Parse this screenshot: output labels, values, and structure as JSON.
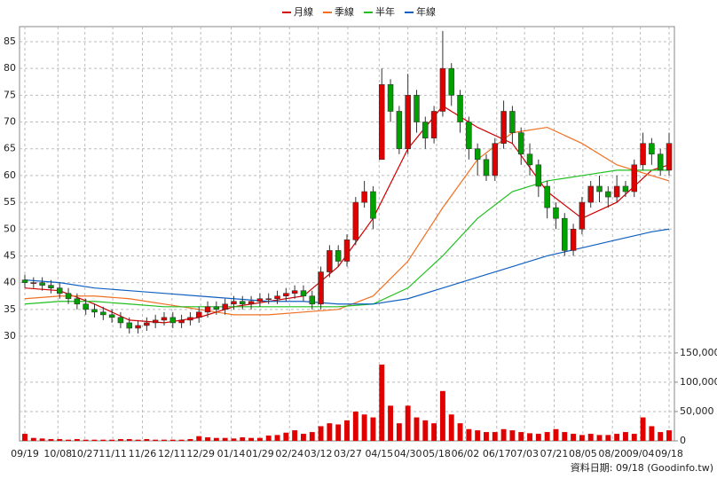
{
  "chart_data": {
    "type": "candlestick",
    "up_color": "#e00000",
    "down_color": "#00a000",
    "volume_color": "#e00000",
    "xticks": [
      {
        "value": 0,
        "label": "09/19"
      },
      {
        "value": 3.8,
        "label": "10/08"
      },
      {
        "value": 6.9,
        "label": "10/27"
      },
      {
        "value": 10.1,
        "label": "11/11"
      },
      {
        "value": 13.5,
        "label": "11/26"
      },
      {
        "value": 16.9,
        "label": "12/11"
      },
      {
        "value": 20.2,
        "label": "12/29"
      },
      {
        "value": 23.7,
        "label": "01/14"
      },
      {
        "value": 27.0,
        "label": "01/29"
      },
      {
        "value": 30.4,
        "label": "02/24"
      },
      {
        "value": 33.7,
        "label": "03/12"
      },
      {
        "value": 37.1,
        "label": "03/27"
      },
      {
        "value": 40.7,
        "label": "04/15"
      },
      {
        "value": 44.0,
        "label": "04/30"
      },
      {
        "value": 47.3,
        "label": "05/18"
      },
      {
        "value": 50.6,
        "label": "06/02"
      },
      {
        "value": 54.2,
        "label": "06/17"
      },
      {
        "value": 57.4,
        "label": "07/03"
      },
      {
        "value": 60.8,
        "label": "07/21"
      },
      {
        "value": 64.1,
        "label": "08/05"
      },
      {
        "value": 67.5,
        "label": "08/20"
      },
      {
        "value": 70.7,
        "label": "09/04"
      },
      {
        "value": 74,
        "label": "09/18"
      }
    ],
    "xlim": [
      0,
      74
    ],
    "ylim": [
      30,
      85
    ],
    "yticks": [
      30,
      35,
      40,
      45,
      50,
      55,
      60,
      65,
      70,
      75,
      80,
      85
    ],
    "y2lim": [
      0,
      177000
    ],
    "y2ticks": [
      0,
      {
        "value": 50000,
        "label": "50,000"
      },
      {
        "value": 100000,
        "label": "100,000"
      },
      {
        "value": 150000,
        "label": "150,000"
      }
    ],
    "grid": true,
    "open": [
      40.5,
      40,
      40,
      39.5,
      39,
      38,
      37,
      36,
      35,
      34.5,
      34,
      33.5,
      32.5,
      31.5,
      32,
      32.5,
      33,
      33.5,
      32.5,
      33,
      33.5,
      34.5,
      35.5,
      35,
      36,
      36.5,
      36,
      36.5,
      37,
      37,
      37.5,
      38,
      38.5,
      37.5,
      36,
      42,
      46,
      44,
      48,
      55,
      57,
      63,
      77,
      72,
      65,
      75,
      70,
      67,
      72,
      80,
      75,
      70,
      65,
      63,
      60,
      66,
      72,
      68,
      64,
      62,
      58,
      54,
      52,
      46,
      50,
      55,
      58,
      57,
      56,
      58,
      57,
      62,
      66,
      64,
      61
    ],
    "high": [
      41.5,
      41,
      41,
      40.5,
      40,
      39,
      38,
      37,
      36,
      35.5,
      35,
      34.5,
      33.5,
      33,
      33.5,
      34,
      34.5,
      34.5,
      34,
      34.5,
      35.5,
      36.5,
      36.5,
      37,
      37.5,
      37.5,
      37.5,
      38,
      38,
      38.5,
      39,
      39.5,
      39.5,
      38.5,
      43,
      47,
      47,
      49,
      56,
      59,
      58,
      80,
      78,
      73,
      79,
      76,
      71,
      73,
      87,
      81,
      76,
      71,
      66,
      64,
      67,
      74,
      73,
      69,
      66,
      63,
      59,
      55,
      53,
      51,
      56,
      59,
      60,
      58,
      60,
      59,
      63,
      68,
      67,
      65,
      68
    ],
    "low": [
      39,
      39,
      38.5,
      38,
      37,
      36,
      35,
      34,
      33.5,
      33,
      32.5,
      31.5,
      30.5,
      30.5,
      31,
      31.5,
      32,
      31.5,
      31.5,
      32,
      32.5,
      33.5,
      34,
      34,
      35,
      35,
      35,
      35.5,
      36,
      36,
      36.5,
      37,
      36.5,
      35,
      35,
      41,
      43,
      43,
      47,
      54,
      50,
      63,
      70,
      64,
      64,
      68,
      65,
      66,
      71,
      73,
      68,
      63,
      60,
      59,
      59,
      65,
      66,
      62,
      60,
      56,
      52,
      50,
      45,
      45,
      49,
      54,
      55,
      54,
      55,
      56,
      56,
      61,
      62,
      60,
      60
    ],
    "close": [
      40,
      40,
      39.5,
      39,
      38,
      37,
      36,
      35,
      34.5,
      34,
      33.5,
      32.5,
      31.5,
      32,
      32.5,
      33,
      33.5,
      32.5,
      33,
      33.5,
      34.5,
      35.5,
      35,
      36,
      36.5,
      36,
      36.5,
      37,
      37,
      37.5,
      38,
      38.5,
      37.5,
      36,
      42,
      46,
      44,
      48,
      55,
      57,
      52,
      77,
      72,
      65,
      75,
      70,
      67,
      72,
      80,
      75,
      70,
      65,
      63,
      60,
      66,
      72,
      68,
      64,
      62,
      58,
      54,
      52,
      46,
      50,
      55,
      58,
      57,
      56,
      58,
      57,
      62,
      66,
      64,
      61,
      66
    ],
    "volume": [
      12000,
      5000,
      4000,
      3000,
      3000,
      2000,
      3000,
      2000,
      2000,
      2000,
      2000,
      3000,
      3000,
      2000,
      3000,
      2000,
      2000,
      2000,
      2000,
      3000,
      8000,
      6000,
      5000,
      5000,
      4000,
      6000,
      5000,
      5000,
      9000,
      10000,
      14000,
      18000,
      12000,
      15000,
      25000,
      30000,
      28000,
      35000,
      50000,
      45000,
      40000,
      130000,
      60000,
      30000,
      60000,
      40000,
      35000,
      30000,
      85000,
      45000,
      30000,
      20000,
      18000,
      15000,
      15000,
      20000,
      18000,
      15000,
      13000,
      12000,
      15000,
      20000,
      15000,
      12000,
      10000,
      12000,
      10000,
      10000,
      12000,
      15000,
      12000,
      40000,
      25000,
      15000,
      18000
    ],
    "series": [
      {
        "name": "月線",
        "color": "#d00000",
        "x": [
          0,
          4,
          8,
          12,
          16,
          20,
          24,
          28,
          32,
          36,
          40,
          44,
          48,
          52,
          56,
          60,
          64,
          68,
          72,
          74
        ],
        "values": [
          39,
          38.5,
          36,
          33,
          32.5,
          33.5,
          35.5,
          36.5,
          37.5,
          43,
          52,
          65,
          73,
          69,
          66,
          57,
          52,
          55,
          61,
          62
        ]
      },
      {
        "name": "季線",
        "color": "#f07020",
        "x": [
          0,
          4,
          8,
          12,
          16,
          20,
          24,
          28,
          32,
          36,
          40,
          44,
          48,
          52,
          56,
          60,
          64,
          68,
          72,
          74
        ],
        "values": [
          37,
          37.5,
          37.5,
          37,
          36,
          35,
          34,
          34,
          34.5,
          35,
          37.5,
          44,
          54,
          63,
          68,
          69,
          66,
          62,
          60,
          59
        ]
      },
      {
        "name": "半年",
        "color": "#20c020",
        "x": [
          0,
          4,
          8,
          12,
          16,
          20,
          24,
          28,
          32,
          36,
          40,
          44,
          48,
          52,
          56,
          60,
          64,
          68,
          72,
          74
        ],
        "values": [
          36,
          36.5,
          36.5,
          36,
          35.5,
          35.5,
          35.5,
          35.5,
          35.5,
          35.5,
          36,
          39,
          45,
          52,
          57,
          59,
          60,
          61,
          61,
          61
        ]
      },
      {
        "name": "年線",
        "color": "#1060c0",
        "x": [
          0,
          4,
          8,
          12,
          16,
          20,
          24,
          28,
          32,
          36,
          40,
          44,
          48,
          52,
          56,
          60,
          64,
          68,
          72,
          74
        ],
        "values": [
          40.5,
          40,
          39,
          38.5,
          38,
          37.5,
          37,
          36.5,
          36.5,
          36,
          36,
          37,
          39,
          41,
          43,
          45,
          46.5,
          48,
          49.5,
          50
        ]
      }
    ],
    "source": "資料日期: 09/18 (Goodinfo.tw)"
  }
}
